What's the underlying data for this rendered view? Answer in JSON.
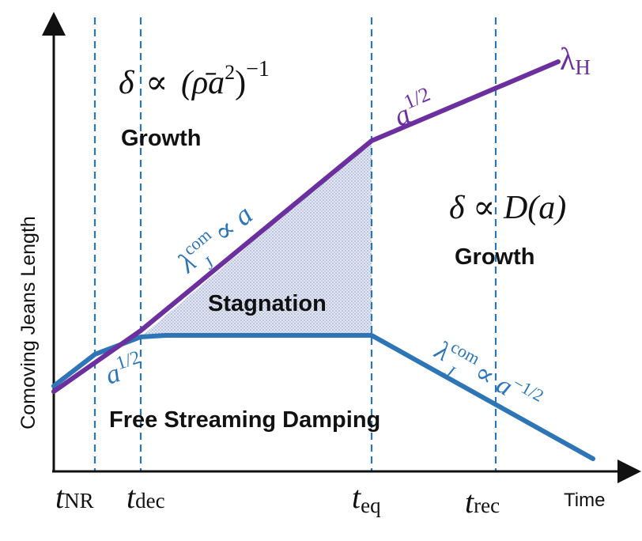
{
  "axes": {
    "ylabel": "Comoving Jeans Length",
    "xlabel": "Time"
  },
  "time_markers": [
    {
      "base": "t",
      "sub": "NR"
    },
    {
      "base": "t",
      "sub": "dec"
    },
    {
      "base": "t",
      "sub": "eq"
    },
    {
      "base": "t",
      "sub": "rec"
    }
  ],
  "regions": {
    "growth_top": "Growth",
    "growth_right": "Growth",
    "stagnation": "Stagnation",
    "free_streaming": "Free Streaming Damping"
  },
  "equations": {
    "top_left": {
      "delta": "δ",
      "prop": "∝",
      "body": "(ρ̄a",
      "sq": "2",
      "close": ")",
      "exp": "−1"
    },
    "right": {
      "text": "δ ∝ D(a)"
    }
  },
  "curve_labels": {
    "hubble": {
      "base": "λ",
      "sub": "H"
    },
    "purple_upper": {
      "base": "a",
      "sup": "1/2"
    },
    "purple_lower": {
      "base": "λ",
      "sup": "com",
      "sub": "J",
      "rest": " ∝ a"
    },
    "blue_lower": {
      "base": "a",
      "sup": "1/2"
    },
    "blue_right": {
      "base": "λ",
      "sup": "com",
      "sub": "J",
      "rest": " ∝ a",
      "rest_sup": "−1/2"
    }
  },
  "colors": {
    "purple": "#6b2f9e",
    "blue": "#2e75b6",
    "dashed": "#2e75b6",
    "axis": "#111111",
    "shade": "#9aa7c9"
  }
}
